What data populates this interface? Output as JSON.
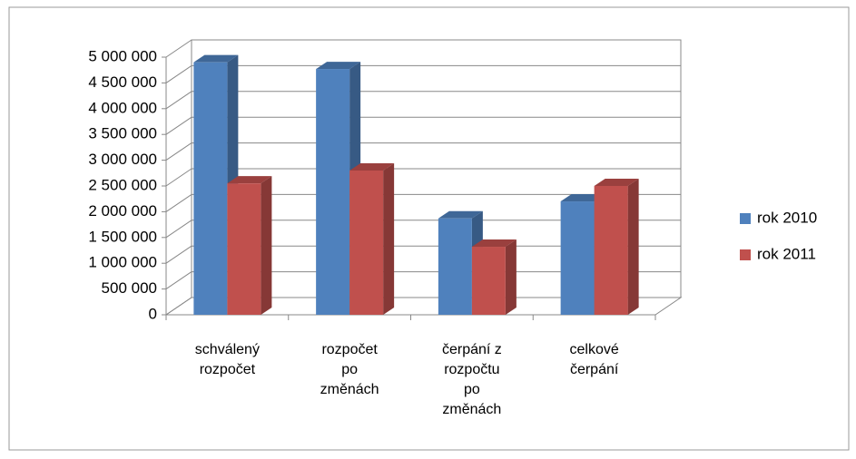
{
  "chart_data": {
    "type": "bar3d",
    "categories": [
      "schválený rozpočet",
      "rozpočet po změnách",
      "čerpání z rozpočtu po změnách",
      "celkové čerpání"
    ],
    "series": [
      {
        "name": "rok 2010",
        "color": "#4f81bd",
        "values": [
          4900000,
          4770000,
          1870000,
          2200000
        ]
      },
      {
        "name": "rok 2011",
        "color": "#c0504d",
        "values": [
          2550000,
          2800000,
          1320000,
          2500000
        ]
      }
    ],
    "ylim": [
      0,
      5000000
    ],
    "yticks": [
      0,
      {
        "value": 500000,
        "label": "500 000"
      },
      {
        "value": 1000000,
        "label": "1 000 000"
      },
      {
        "value": 1500000,
        "label": "1 500 000"
      },
      {
        "value": 2000000,
        "label": "2 000 000"
      },
      {
        "value": 2500000,
        "label": "2 500 000"
      },
      {
        "value": 3000000,
        "label": "3 000 000"
      },
      {
        "value": 3500000,
        "label": "3 500 000"
      },
      {
        "value": 4000000,
        "label": "4 000 000"
      },
      {
        "value": 4500000,
        "label": "4 500 000"
      },
      {
        "value": 5000000,
        "label": "5 000 000"
      }
    ],
    "grid": true,
    "legend": "right"
  }
}
